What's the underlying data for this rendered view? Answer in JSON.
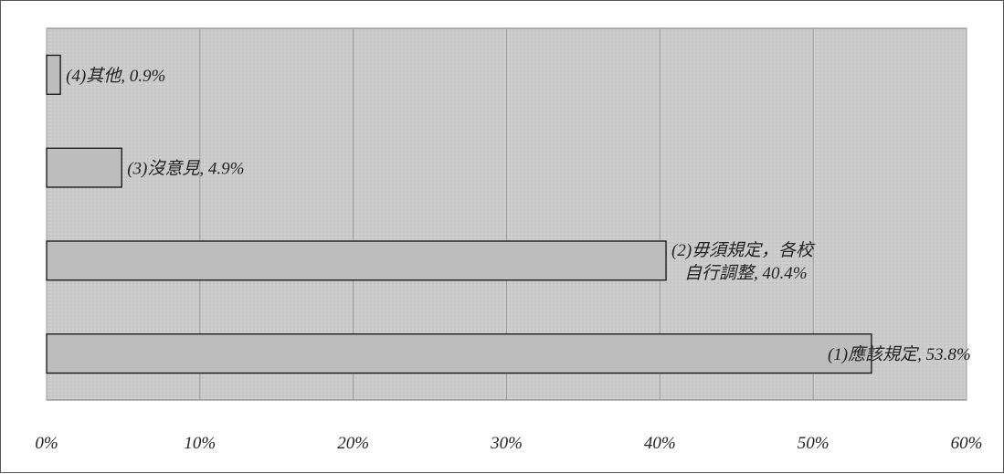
{
  "chart_data": {
    "type": "bar",
    "orientation": "horizontal",
    "categories": [
      "(1)應該規定",
      "(2)毋須規定，各校自行調整",
      "(3)沒意見",
      "(4)其他"
    ],
    "values": [
      53.8,
      40.4,
      4.9,
      0.9
    ],
    "labels": [
      [
        "(1)應該規定, 53.8%"
      ],
      [
        "(2)毋須規定，各校",
        "自行調整, 40.4%"
      ],
      [
        "(3)沒意見, 4.9%"
      ],
      [
        "(4)其他, 0.9%"
      ]
    ],
    "xlim": [
      0,
      60
    ],
    "xticks": [
      "0%",
      "10%",
      "20%",
      "30%",
      "40%",
      "50%",
      "60%"
    ],
    "grid": true,
    "colors": {
      "plot_background": "#cfcfcf",
      "bar_fill": "#bdbdbd",
      "bar_stroke": "#111111",
      "grid": "#9a9a9a"
    }
  }
}
